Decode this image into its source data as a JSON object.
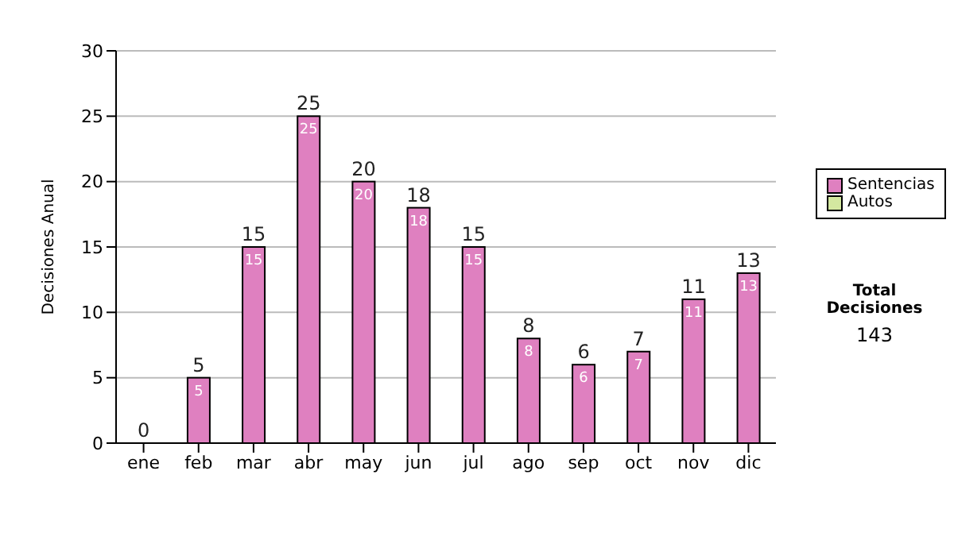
{
  "chart_data": {
    "type": "bar",
    "stacked": true,
    "ylabel": "Decisiones Anual",
    "categories": [
      "ene",
      "feb",
      "mar",
      "abr",
      "may",
      "jun",
      "jul",
      "ago",
      "sep",
      "oct",
      "nov",
      "dic"
    ],
    "series": [
      {
        "name": "Sentencias",
        "color": "#df80c0",
        "values": [
          0,
          5,
          15,
          25,
          20,
          18,
          15,
          8,
          6,
          7,
          11,
          13
        ],
        "value_labels": [
          null,
          "5",
          "15",
          "25",
          "20",
          "18",
          "15",
          "8",
          "6",
          "7",
          "11",
          "13"
        ]
      },
      {
        "name": "Autos",
        "color": "#d4e8a0",
        "values": [
          0,
          0,
          0,
          0,
          0,
          0,
          0,
          0,
          0,
          0,
          0,
          0
        ]
      }
    ],
    "totals": [
      "0",
      "5",
      "15",
      "25",
      "20",
      "18",
      "15",
      "8",
      "6",
      "7",
      "11",
      "13"
    ],
    "ylim": [
      0,
      30
    ],
    "yticks": [
      0,
      5,
      10,
      15,
      20,
      25,
      30
    ],
    "grid": "y",
    "legend": "right",
    "annotations": [
      "Total Decisiones",
      "143"
    ]
  }
}
